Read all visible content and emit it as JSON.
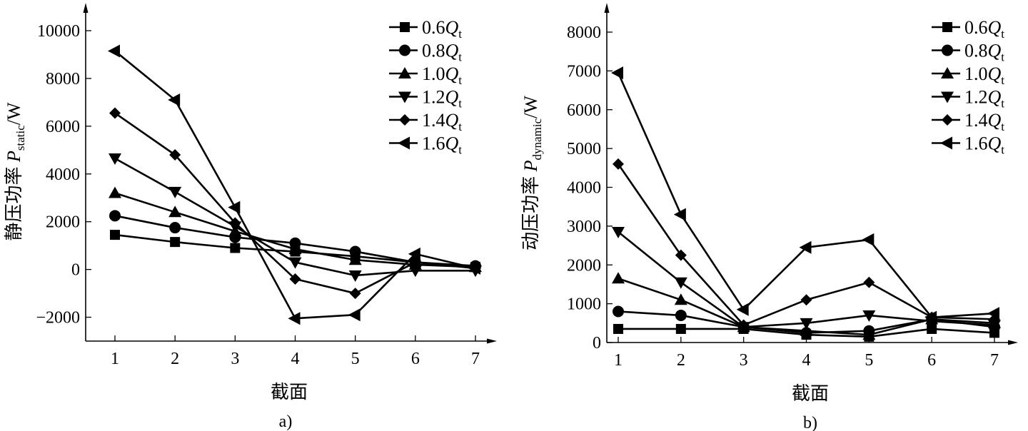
{
  "chart_data": [
    {
      "type": "line",
      "caption": "a)",
      "xlabel": "截面",
      "ylabel": {
        "prefix": "静压功率 ",
        "symbol": "P",
        "subscript": "static",
        "unit": "/W"
      },
      "x": [
        1,
        2,
        3,
        4,
        5,
        6,
        7
      ],
      "ylim": [
        -3000,
        10000
      ],
      "yticks": [
        -2000,
        0,
        2000,
        4000,
        6000,
        8000,
        10000
      ],
      "ytick_labels": [
        "−2000",
        "0",
        "2000",
        "4000",
        "6000",
        "8000",
        "10000"
      ],
      "grid": false,
      "legend": "top-right",
      "series": [
        {
          "name": "0.6Q_t",
          "label_num": "0.6",
          "marker": "square",
          "values": [
            1450,
            1150,
            900,
            750,
            550,
            300,
            100
          ]
        },
        {
          "name": "0.8Q_t",
          "label_num": "0.8",
          "marker": "circle",
          "values": [
            2250,
            1750,
            1350,
            1100,
            750,
            300,
            150
          ]
        },
        {
          "name": "1.0Q_t",
          "label_num": "1.0",
          "marker": "triangle-up",
          "values": [
            3200,
            2400,
            1600,
            850,
            400,
            200,
            100
          ]
        },
        {
          "name": "1.2Q_t",
          "label_num": "1.2",
          "marker": "triangle-down",
          "values": [
            4650,
            3250,
            1800,
            300,
            -250,
            -50,
            -50
          ]
        },
        {
          "name": "1.4Q_t",
          "label_num": "1.4",
          "marker": "diamond",
          "values": [
            6550,
            4800,
            1950,
            -400,
            -1000,
            300,
            50
          ]
        },
        {
          "name": "1.6Q_t",
          "label_num": "1.6",
          "marker": "triangle-left",
          "values": [
            9150,
            7100,
            2600,
            -2050,
            -1900,
            650,
            50
          ]
        }
      ]
    },
    {
      "type": "line",
      "caption": "b)",
      "xlabel": "截面",
      "ylabel": {
        "prefix": "动压功率 ",
        "symbol": "P",
        "subscript": "dynamic",
        "unit": "/W"
      },
      "x": [
        1,
        2,
        3,
        4,
        5,
        6,
        7
      ],
      "ylim": [
        0,
        8000
      ],
      "yticks": [
        0,
        1000,
        2000,
        3000,
        4000,
        5000,
        6000,
        7000,
        8000
      ],
      "ytick_labels": [
        "0",
        "1000",
        "2000",
        "3000",
        "4000",
        "5000",
        "6000",
        "7000",
        "8000"
      ],
      "grid": false,
      "legend": "top-right",
      "series": [
        {
          "name": "0.6Q_t",
          "label_num": "0.6",
          "marker": "square",
          "values": [
            350,
            350,
            350,
            200,
            150,
            350,
            250
          ]
        },
        {
          "name": "0.8Q_t",
          "label_num": "0.8",
          "marker": "circle",
          "values": [
            800,
            700,
            400,
            250,
            300,
            600,
            400
          ]
        },
        {
          "name": "1.0Q_t",
          "label_num": "1.0",
          "marker": "triangle-up",
          "values": [
            1650,
            1100,
            400,
            300,
            200,
            600,
            500
          ]
        },
        {
          "name": "1.2Q_t",
          "label_num": "1.2",
          "marker": "triangle-down",
          "values": [
            2850,
            1550,
            400,
            500,
            700,
            550,
            450
          ]
        },
        {
          "name": "1.4Q_t",
          "label_num": "1.4",
          "marker": "diamond",
          "values": [
            4600,
            2250,
            450,
            1100,
            1550,
            650,
            600
          ]
        },
        {
          "name": "1.6Q_t",
          "label_num": "1.6",
          "marker": "triangle-left",
          "values": [
            6950,
            3300,
            850,
            2450,
            2650,
            650,
            750
          ]
        }
      ]
    }
  ]
}
